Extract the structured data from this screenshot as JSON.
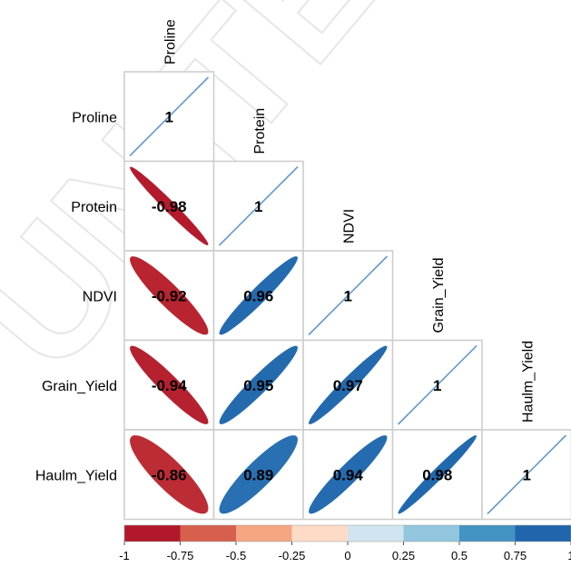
{
  "chart_data": {
    "type": "heatmap",
    "variables": [
      "Proline",
      "Protein",
      "NDVI",
      "Grain_Yield",
      "Haulm_Yield"
    ],
    "correlations": [
      [
        1,
        -0.98,
        -0.92,
        -0.94,
        -0.86
      ],
      [
        -0.98,
        1,
        0.96,
        0.95,
        0.89
      ],
      [
        -0.92,
        0.96,
        1,
        0.97,
        0.94
      ],
      [
        -0.94,
        0.95,
        0.97,
        1,
        0.98
      ],
      [
        -0.86,
        0.89,
        0.94,
        0.98,
        1
      ]
    ],
    "cell_labels": [
      [
        "1"
      ],
      [
        "-0.98",
        "1"
      ],
      [
        "-0.92",
        "0.96",
        "1"
      ],
      [
        "-0.94",
        "0.95",
        "0.97",
        "1"
      ],
      [
        "-0.86",
        "0.89",
        "0.94",
        "0.98",
        "1"
      ]
    ],
    "layout": "lower-triangle",
    "glyph": "ellipse",
    "colorbar": {
      "range": [
        -1,
        1
      ],
      "ticks": [
        "-1",
        "-0.75",
        "-0.5",
        "-0.25",
        "0",
        "0.25",
        "0.5",
        "0.75",
        "1"
      ],
      "colors": [
        "#b2182b",
        "#d6604d",
        "#f4a582",
        "#fddbc7",
        "#d1e5f0",
        "#92c5de",
        "#4393c3",
        "#2166ac"
      ]
    },
    "diagonal_color": "#6699cc"
  }
}
